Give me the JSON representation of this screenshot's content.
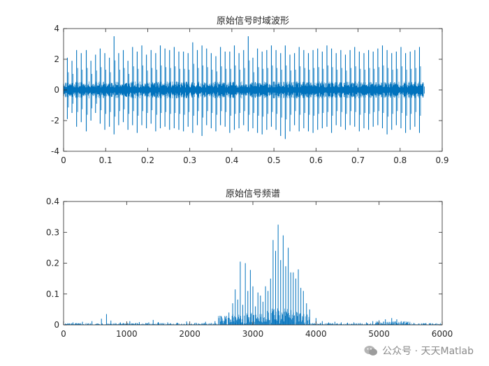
{
  "chart_data": [
    {
      "type": "line",
      "title": "原始信号时域波形",
      "xlabel": "",
      "ylabel": "",
      "xlim": [
        0,
        0.9
      ],
      "ylim": [
        -4,
        4
      ],
      "x_ticks": [
        0,
        0.1,
        0.2,
        0.3,
        0.4,
        0.5,
        0.6,
        0.7,
        0.8,
        0.9
      ],
      "x_tick_labels": [
        "0",
        "0.1",
        "0.2",
        "0.3",
        "0.4",
        "0.5",
        "0.6",
        "0.7",
        "0.8",
        "0.9"
      ],
      "y_ticks": [
        -4,
        -2,
        0,
        2,
        4
      ],
      "y_tick_labels": [
        "-4",
        "-2",
        "0",
        "2",
        "4"
      ],
      "grid": false,
      "series_color": "#0072BD",
      "series": [
        {
          "x": [
            0,
            0.009,
            0.02,
            0.031,
            0.042,
            0.054,
            0.065,
            0.076,
            0.087,
            0.098,
            0.109,
            0.12,
            0.131,
            0.142,
            0.153,
            0.164,
            0.175,
            0.186,
            0.197,
            0.208,
            0.219,
            0.23,
            0.241,
            0.252,
            0.263,
            0.274,
            0.285,
            0.296,
            0.307,
            0.318,
            0.329,
            0.34,
            0.351,
            0.362,
            0.373,
            0.384,
            0.395,
            0.406,
            0.417,
            0.428,
            0.439,
            0.45,
            0.461,
            0.472,
            0.483,
            0.494,
            0.505,
            0.516,
            0.527,
            0.538,
            0.549,
            0.56,
            0.571,
            0.582,
            0.593,
            0.604,
            0.615,
            0.626,
            0.637,
            0.648,
            0.659,
            0.67,
            0.681,
            0.692,
            0.703,
            0.714,
            0.725,
            0.736,
            0.747,
            0.758,
            0.769,
            0.78,
            0.791,
            0.802,
            0.813,
            0.824,
            0.835,
            0.846,
            0.855
          ],
          "y_max": [
            0.4,
            2.1,
            1.9,
            2.6,
            2.4,
            2.6,
            1.9,
            2.3,
            2.7,
            2.4,
            2.1,
            3.5,
            2.4,
            2.6,
            1.9,
            2.8,
            2.5,
            2.9,
            2.3,
            2.6,
            2.4,
            2.9,
            2.7,
            2.6,
            2.8,
            2.5,
            2.5,
            2.4,
            3.1,
            2.6,
            2.9,
            2.7,
            2.4,
            2.2,
            2.8,
            2.5,
            2.5,
            2.9,
            2.4,
            2.6,
            3.5,
            2.1,
            2.7,
            2.5,
            2.6,
            2.9,
            2.6,
            2.4,
            2.9,
            2.3,
            2.4,
            2.8,
            2.6,
            2.4,
            2.6,
            2.7,
            2.5,
            2.9,
            2.7,
            2.4,
            2.6,
            2.3,
            2.6,
            2.8,
            2.5,
            2.4,
            2.6,
            2.5,
            2.7,
            2.9,
            2.6,
            2.4,
            2.5,
            2.8,
            2.4,
            2.5,
            2.6,
            2.8,
            0.4
          ],
          "y_min": [
            -0.4,
            -1.9,
            -1.5,
            -2.4,
            -2.1,
            -2.7,
            -2.0,
            -1.5,
            -2.2,
            -2.6,
            -2.4,
            -2.9,
            -2.3,
            -2.1,
            -2.6,
            -2.3,
            -2.8,
            -2.3,
            -2.5,
            -2.2,
            -2.7,
            -2.5,
            -2.4,
            -2.6,
            -2.5,
            -2.6,
            -2.7,
            -2.4,
            -2.8,
            -2.3,
            -3.0,
            -2.3,
            -2.5,
            -2.7,
            -2.3,
            -2.4,
            -2.8,
            -2.6,
            -2.5,
            -2.3,
            -2.7,
            -2.5,
            -2.8,
            -2.9,
            -2.6,
            -2.4,
            -2.6,
            -3.0,
            -3.2,
            -2.7,
            -2.3,
            -2.7,
            -2.5,
            -2.7,
            -2.8,
            -2.6,
            -2.5,
            -2.4,
            -2.8,
            -2.3,
            -2.4,
            -2.6,
            -2.3,
            -2.4,
            -2.7,
            -2.5,
            -2.6,
            -2.4,
            -2.3,
            -2.5,
            -2.9,
            -2.6,
            -2.3,
            -2.5,
            -2.8,
            -2.6,
            -2.4,
            -2.8,
            -0.4
          ]
        }
      ]
    },
    {
      "type": "line",
      "title": "原始信号频谱",
      "xlabel": "",
      "ylabel": "",
      "xlim": [
        0,
        6000
      ],
      "ylim": [
        0,
        0.4
      ],
      "x_ticks": [
        0,
        1000,
        2000,
        3000,
        4000,
        5000,
        6000
      ],
      "x_tick_labels": [
        "0",
        "1000",
        "2000",
        "3000",
        "4000",
        "5000",
        "6000"
      ],
      "y_ticks": [
        0,
        0.1,
        0.2,
        0.3,
        0.4
      ],
      "y_tick_labels": [
        "0",
        "0.1",
        "0.2",
        "0.3",
        "0.4"
      ],
      "grid": false,
      "series_color": "#0072BD",
      "series": [
        {
          "x": [
            0,
            150,
            300,
            450,
            600,
            680,
            750,
            900,
            1050,
            1200,
            1350,
            1420,
            1500,
            1650,
            1800,
            1950,
            2100,
            2250,
            2400,
            2500,
            2560,
            2620,
            2680,
            2720,
            2760,
            2800,
            2840,
            2880,
            2920,
            2960,
            3000,
            3040,
            3080,
            3120,
            3160,
            3200,
            3240,
            3280,
            3320,
            3360,
            3400,
            3440,
            3480,
            3520,
            3560,
            3600,
            3640,
            3680,
            3720,
            3760,
            3800,
            3850,
            3900,
            4000,
            4100,
            4200,
            4300,
            4400,
            4500,
            4600,
            4700,
            4800,
            4900,
            5000,
            5100,
            5200,
            5280,
            5350,
            5450,
            5550,
            5700,
            5850,
            6000
          ],
          "y": [
            0.012,
            0.008,
            0.01,
            0.012,
            0.02,
            0.035,
            0.014,
            0.008,
            0.012,
            0.009,
            0.008,
            0.016,
            0.009,
            0.008,
            0.007,
            0.011,
            0.007,
            0.01,
            0.012,
            0.012,
            0.02,
            0.04,
            0.07,
            0.115,
            0.082,
            0.205,
            0.065,
            0.2,
            0.11,
            0.178,
            0.125,
            0.06,
            0.105,
            0.095,
            0.075,
            0.125,
            0.11,
            0.15,
            0.275,
            0.24,
            0.325,
            0.21,
            0.29,
            0.19,
            0.25,
            0.17,
            0.17,
            0.15,
            0.18,
            0.12,
            0.11,
            0.07,
            0.05,
            0.022,
            0.012,
            0.008,
            0.01,
            0.008,
            0.007,
            0.008,
            0.006,
            0.008,
            0.012,
            0.015,
            0.018,
            0.022,
            0.018,
            0.012,
            0.008,
            0.006,
            0.005,
            0.004,
            0.003
          ]
        }
      ]
    }
  ],
  "watermark": {
    "icon": "wechat-icon",
    "text": "公众号 · 天天Matlab"
  }
}
